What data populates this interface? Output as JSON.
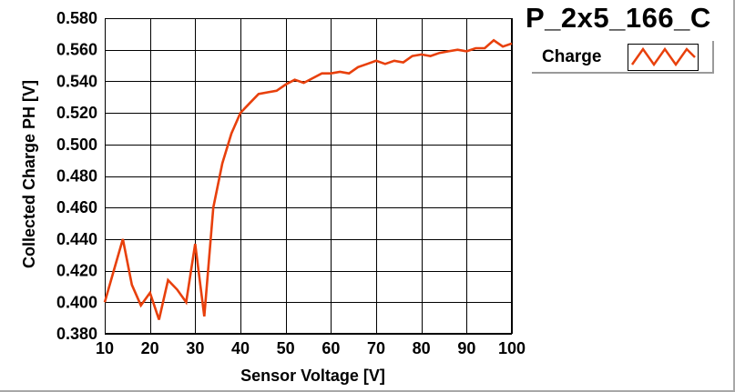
{
  "window": {
    "title": "P_2x5_166_C"
  },
  "legend": {
    "label": "Charge"
  },
  "colors": {
    "series": "#e8400c",
    "grid": "#000000",
    "background": "#ffffff",
    "axis_text": "#000000"
  },
  "chart_data": {
    "type": "line",
    "title": "P_2x5_166_C",
    "xlabel": "Sensor Voltage [V]",
    "ylabel": "Collected Charge PH [V]",
    "xlim": [
      10,
      100
    ],
    "ylim": [
      0.38,
      0.58
    ],
    "grid": true,
    "legend_position": "top-right",
    "x_ticks": [
      "10",
      "20",
      "30",
      "40",
      "50",
      "60",
      "70",
      "80",
      "90",
      "100"
    ],
    "y_ticks": [
      "0.380",
      "0.400",
      "0.420",
      "0.440",
      "0.460",
      "0.480",
      "0.500",
      "0.520",
      "0.540",
      "0.560",
      "0.580"
    ],
    "series": [
      {
        "name": "Charge",
        "color": "#e8400c",
        "x": [
          10,
          12,
          14,
          16,
          18,
          20,
          22,
          24,
          26,
          28,
          30,
          32,
          34,
          36,
          38,
          40,
          42,
          44,
          46,
          48,
          50,
          52,
          54,
          56,
          58,
          60,
          62,
          64,
          66,
          68,
          70,
          72,
          74,
          76,
          78,
          80,
          82,
          84,
          86,
          88,
          90,
          92,
          94,
          96,
          98,
          100
        ],
        "values": [
          0.4,
          0.42,
          0.44,
          0.411,
          0.398,
          0.406,
          0.389,
          0.414,
          0.408,
          0.4,
          0.437,
          0.391,
          0.46,
          0.488,
          0.507,
          0.52,
          0.526,
          0.532,
          0.533,
          0.534,
          0.538,
          0.541,
          0.539,
          0.542,
          0.545,
          0.545,
          0.546,
          0.545,
          0.549,
          0.551,
          0.553,
          0.551,
          0.553,
          0.552,
          0.556,
          0.557,
          0.556,
          0.558,
          0.559,
          0.56,
          0.559,
          0.561,
          0.561,
          0.566,
          0.562,
          0.564
        ]
      }
    ]
  }
}
